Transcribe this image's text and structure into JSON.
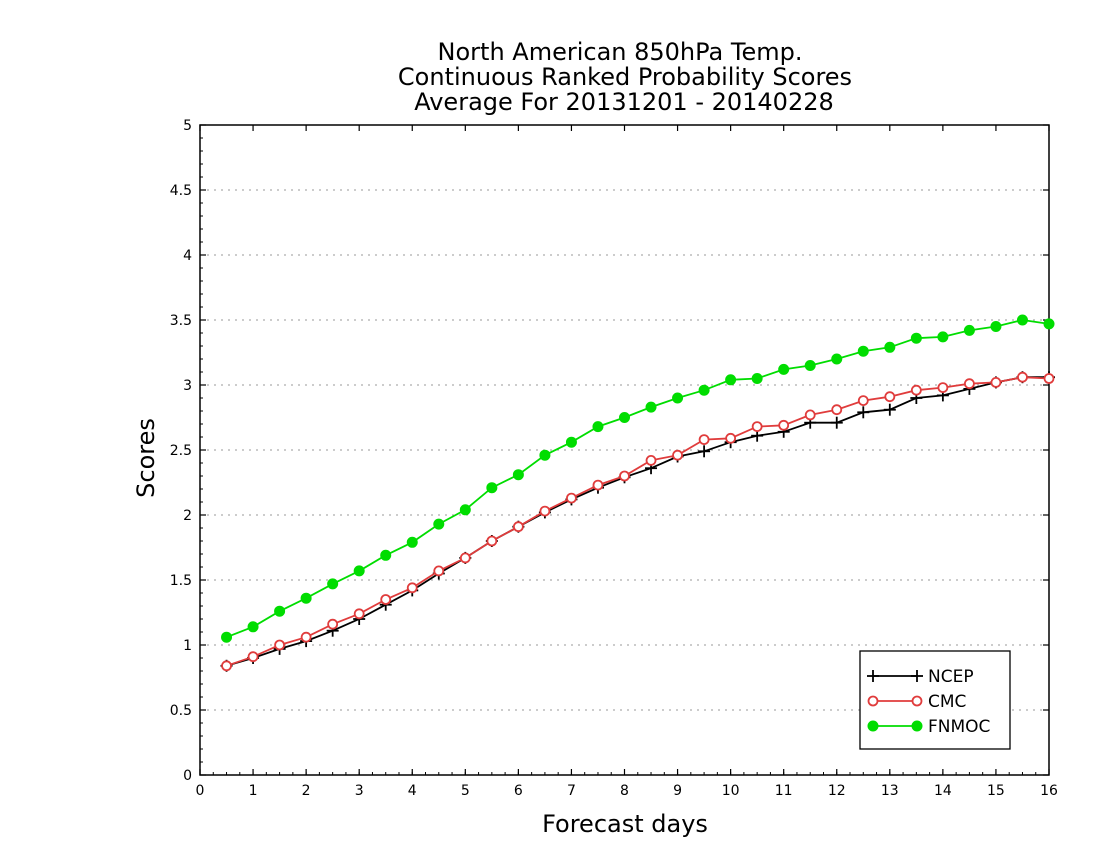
{
  "chart_data": {
    "type": "line",
    "title": [
      "North American 850hPa Temp.",
      "Continuous Ranked Probability Scores",
      "Average For 20131201 - 20140228"
    ],
    "xlabel": "Forecast days",
    "ylabel": "Scores",
    "xlim": [
      0,
      16
    ],
    "ylim": [
      0,
      5
    ],
    "xticks": [
      "0",
      "1",
      "2",
      "3",
      "4",
      "5",
      "6",
      "7",
      "8",
      "9",
      "10",
      "11",
      "12",
      "13",
      "14",
      "15",
      "16"
    ],
    "yticks": [
      "0",
      "0.5",
      "1",
      "1.5",
      "2",
      "2.5",
      "3",
      "3.5",
      "4",
      "4.5",
      "5"
    ],
    "grid": "horizontal dotted",
    "legend_position": "bottom-right",
    "x": [
      0.5,
      1,
      1.5,
      2,
      2.5,
      3,
      3.5,
      4,
      4.5,
      5,
      5.5,
      6,
      6.5,
      7,
      7.5,
      8,
      8.5,
      9,
      9.5,
      10,
      10.5,
      11,
      11.5,
      12,
      12.5,
      13,
      13.5,
      14,
      14.5,
      15,
      15.5,
      16
    ],
    "series": [
      {
        "name": "NCEP",
        "color": "#000000",
        "marker": "plus",
        "values": [
          0.84,
          0.9,
          0.97,
          1.03,
          1.11,
          1.2,
          1.31,
          1.42,
          1.55,
          1.67,
          1.8,
          1.91,
          2.02,
          2.12,
          2.21,
          2.29,
          2.36,
          2.45,
          2.49,
          2.56,
          2.61,
          2.64,
          2.71,
          2.71,
          2.79,
          2.81,
          2.9,
          2.92,
          2.97,
          3.02,
          3.06,
          3.06
        ]
      },
      {
        "name": "CMC",
        "color": "#e03c3c",
        "marker": "open-circle",
        "values": [
          0.84,
          0.91,
          1.0,
          1.06,
          1.16,
          1.24,
          1.35,
          1.44,
          1.57,
          1.67,
          1.8,
          1.91,
          2.03,
          2.13,
          2.23,
          2.3,
          2.42,
          2.46,
          2.58,
          2.59,
          2.68,
          2.69,
          2.77,
          2.81,
          2.88,
          2.91,
          2.96,
          2.98,
          3.01,
          3.02,
          3.06,
          3.05
        ]
      },
      {
        "name": "FNMOC",
        "color": "#00dd00",
        "marker": "filled-circle",
        "values": [
          1.06,
          1.14,
          1.26,
          1.36,
          1.47,
          1.57,
          1.69,
          1.79,
          1.93,
          2.04,
          2.21,
          2.31,
          2.46,
          2.56,
          2.68,
          2.75,
          2.83,
          2.9,
          2.96,
          3.04,
          3.05,
          3.12,
          3.15,
          3.2,
          3.26,
          3.29,
          3.36,
          3.37,
          3.42,
          3.45,
          3.5,
          3.47
        ]
      }
    ]
  }
}
